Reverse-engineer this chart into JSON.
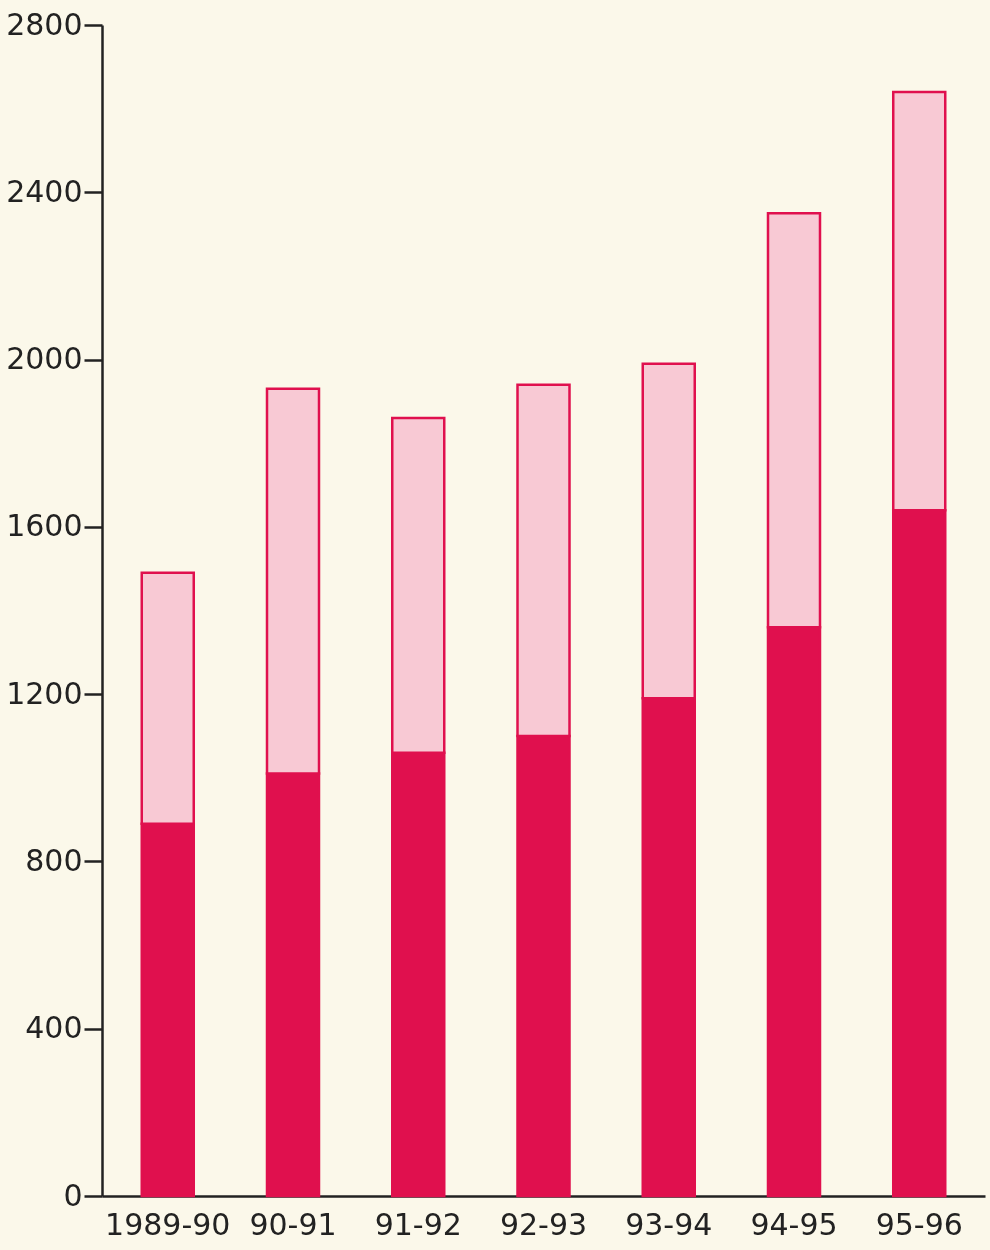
{
  "chart_data": {
    "type": "bar",
    "stacked": true,
    "categories": [
      "1989-90",
      "90-91",
      "91-92",
      "92-93",
      "93-94",
      "94-95",
      "95-96"
    ],
    "series": [
      {
        "color": "#e0104e",
        "values": [
          890,
          1010,
          1060,
          1100,
          1190,
          1360,
          1640
        ]
      },
      {
        "color": "#f8c9d4",
        "values": [
          600,
          920,
          800,
          840,
          800,
          990,
          1000
        ]
      }
    ],
    "ylim": [
      0,
      2800
    ],
    "yticks": [
      0,
      400,
      800,
      1200,
      1600,
      2000,
      2400,
      2800
    ],
    "grid": false,
    "legend": false
  }
}
